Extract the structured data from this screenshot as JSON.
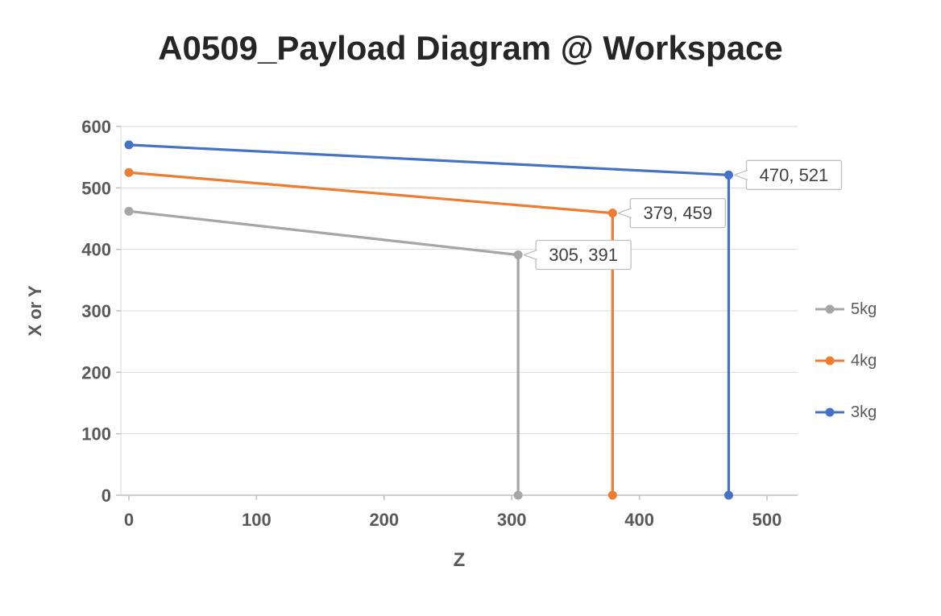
{
  "chart_data": {
    "type": "line",
    "title": "A0509_Payload Diagram @ Workspace",
    "xlabel": "Z",
    "ylabel": "X or Y",
    "xlim": [
      0,
      500
    ],
    "ylim": [
      0,
      600
    ],
    "x_ticks": [
      0,
      100,
      200,
      300,
      400,
      500
    ],
    "y_ticks": [
      0,
      100,
      200,
      300,
      400,
      500,
      600
    ],
    "grid": "horizontal-gridlines",
    "legend_position": "right",
    "series": [
      {
        "name": "5kg",
        "color": "#a6a6a6",
        "points": [
          [
            0,
            462
          ],
          [
            305,
            391
          ],
          [
            305,
            0
          ]
        ],
        "data_label": "305, 391",
        "data_label_point": [
          305,
          391
        ]
      },
      {
        "name": "4kg",
        "color": "#ed7d31",
        "points": [
          [
            0,
            525
          ],
          [
            379,
            459
          ],
          [
            379,
            0
          ]
        ],
        "data_label": "379, 459",
        "data_label_point": [
          379,
          459
        ]
      },
      {
        "name": "3kg",
        "color": "#4472c4",
        "points": [
          [
            0,
            570
          ],
          [
            470,
            521
          ],
          [
            470,
            0
          ]
        ],
        "data_label": "470, 521",
        "data_label_point": [
          470,
          521
        ]
      }
    ],
    "colors": {
      "background": "#ffffff",
      "gridline": "#d9d9d9",
      "axis_line": "#bfbfbf",
      "tick_text": "#595959",
      "axis_title_text": "#595959",
      "title_text": "#262626",
      "legend_text": "#595959",
      "callout_border": "#bfbfbf",
      "callout_fill": "#ffffff",
      "callout_text": "#404040"
    }
  }
}
